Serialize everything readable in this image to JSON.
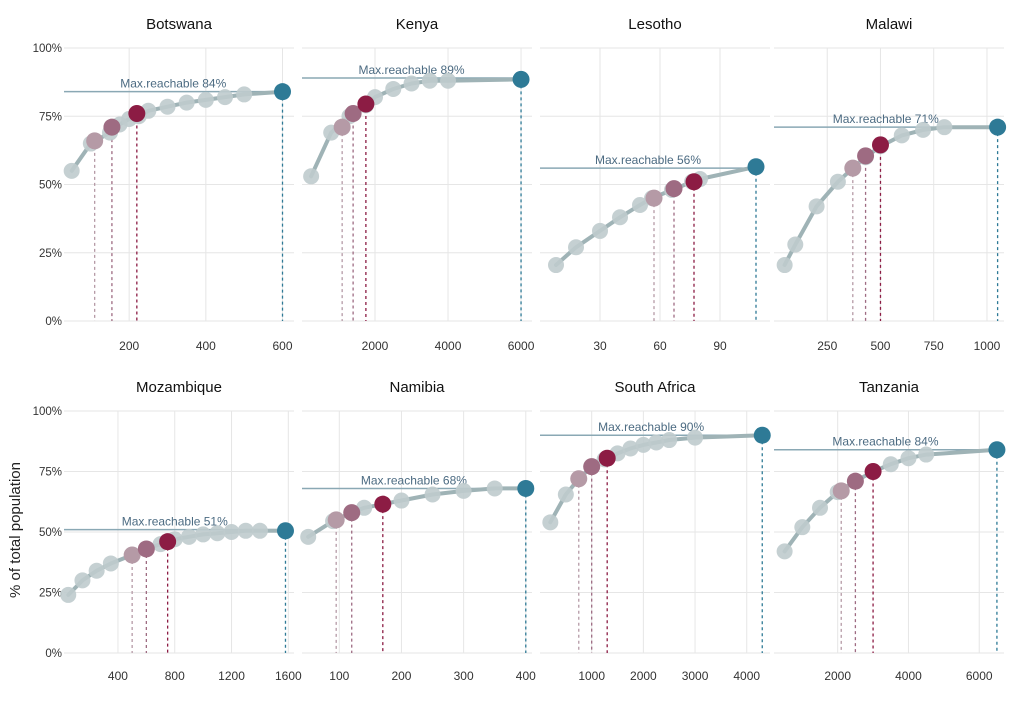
{
  "figure": {
    "ylabel": "% of total population",
    "yticks": [
      "0%",
      "25%",
      "50%",
      "75%",
      "100%"
    ]
  },
  "colors": {
    "gray_point": "#bfcbcd",
    "gray_line": "#9fb3b6",
    "highlight_1": "#b59aa6",
    "highlight_2": "#9e6b82",
    "highlight_3": "#8c1c44",
    "max_point": "#2e7a96",
    "max_line": "#8aa8b4",
    "max_label": "#4c6b82",
    "grid": "#e6e6e6",
    "text": "#333333"
  },
  "chart_data": [
    {
      "type": "line",
      "title": "Botswana",
      "xlim": [
        30,
        630
      ],
      "ylim": [
        0,
        100
      ],
      "xticks": [
        200,
        400,
        600
      ],
      "annotation": "Max.reachable 84%",
      "max_reachable": 84,
      "series": [
        {
          "x": [
            50,
            100,
            150,
            175,
            200,
            225,
            250,
            300,
            350,
            400,
            450,
            500,
            600
          ],
          "y": [
            55,
            65,
            69,
            72,
            74,
            75,
            77,
            78.5,
            80,
            81,
            82,
            83,
            84
          ]
        }
      ],
      "highlights": [
        {
          "x": 110,
          "y": 66
        },
        {
          "x": 155,
          "y": 71
        },
        {
          "x": 220,
          "y": 76
        }
      ],
      "max_point": {
        "x": 600,
        "y": 84
      }
    },
    {
      "type": "line",
      "title": "Kenya",
      "xlim": [
        0,
        6300
      ],
      "ylim": [
        0,
        100
      ],
      "xticks": [
        2000,
        4000,
        6000
      ],
      "annotation": "Max.reachable 89%",
      "max_reachable": 89,
      "series": [
        {
          "x": [
            250,
            800,
            1300,
            1750,
            2000,
            2500,
            3000,
            3500,
            4000,
            6000
          ],
          "y": [
            53,
            69,
            75,
            79,
            82,
            85,
            87,
            88,
            88,
            88.5
          ]
        }
      ],
      "highlights": [
        {
          "x": 1100,
          "y": 71
        },
        {
          "x": 1400,
          "y": 76
        },
        {
          "x": 1750,
          "y": 79.5
        }
      ],
      "max_point": {
        "x": 6000,
        "y": 88.5
      }
    },
    {
      "type": "line",
      "title": "Lesotho",
      "xlim": [
        0,
        115
      ],
      "ylim": [
        0,
        100
      ],
      "xticks": [
        30,
        60,
        90
      ],
      "annotation": "Max.reachable 56%",
      "max_reachable": 56,
      "series": [
        {
          "x": [
            8,
            18,
            30,
            40,
            50,
            56,
            66,
            76,
            80,
            108
          ],
          "y": [
            20.5,
            27,
            33,
            38,
            42.5,
            45,
            48,
            51,
            52,
            56.5
          ]
        }
      ],
      "highlights": [
        {
          "x": 57,
          "y": 45
        },
        {
          "x": 67,
          "y": 48.5
        },
        {
          "x": 77,
          "y": 51
        }
      ],
      "max_point": {
        "x": 108,
        "y": 56.5
      }
    },
    {
      "type": "line",
      "title": "Malawi",
      "xlim": [
        0,
        1080
      ],
      "ylim": [
        0,
        100
      ],
      "xticks": [
        250,
        500,
        750,
        1000
      ],
      "annotation": "Max.reachable 71%",
      "max_reachable": 71,
      "series": [
        {
          "x": [
            50,
            100,
            200,
            300,
            370,
            430,
            500,
            600,
            700,
            800,
            1050
          ],
          "y": [
            20.5,
            28,
            42,
            51,
            56,
            60,
            64,
            68,
            70,
            71,
            71
          ]
        }
      ],
      "highlights": [
        {
          "x": 370,
          "y": 56
        },
        {
          "x": 430,
          "y": 60.5
        },
        {
          "x": 500,
          "y": 64.5
        }
      ],
      "max_point": {
        "x": 1050,
        "y": 71
      }
    },
    {
      "type": "line",
      "title": "Mozambique",
      "xlim": [
        20,
        1640
      ],
      "ylim": [
        0,
        100
      ],
      "xticks": [
        400,
        800,
        1200,
        1600
      ],
      "annotation": "Max.reachable 51%",
      "max_reachable": 51,
      "series": [
        {
          "x": [
            50,
            150,
            250,
            350,
            500,
            600,
            700,
            800,
            900,
            1000,
            1100,
            1200,
            1300,
            1400,
            1580
          ],
          "y": [
            24,
            30,
            34,
            37,
            40.5,
            43,
            45,
            47,
            48,
            49,
            49.5,
            50,
            50.5,
            50.5,
            50.5
          ]
        }
      ],
      "highlights": [
        {
          "x": 500,
          "y": 40.5
        },
        {
          "x": 600,
          "y": 43
        },
        {
          "x": 750,
          "y": 46
        }
      ],
      "max_point": {
        "x": 1580,
        "y": 50.5
      }
    },
    {
      "type": "line",
      "title": "Namibia",
      "xlim": [
        40,
        410
      ],
      "ylim": [
        0,
        100
      ],
      "xticks": [
        100,
        200,
        300,
        400
      ],
      "annotation": "Max.reachable 68%",
      "max_reachable": 68,
      "series": [
        {
          "x": [
            50,
            90,
            120,
            140,
            170,
            200,
            250,
            300,
            350,
            400
          ],
          "y": [
            48,
            54.5,
            58,
            60,
            61.5,
            63,
            65.5,
            67,
            68,
            68
          ]
        }
      ],
      "highlights": [
        {
          "x": 95,
          "y": 55
        },
        {
          "x": 120,
          "y": 58
        },
        {
          "x": 170,
          "y": 61.5
        }
      ],
      "max_point": {
        "x": 400,
        "y": 68
      }
    },
    {
      "type": "line",
      "title": "South Africa",
      "xlim": [
        0,
        4450
      ],
      "ylim": [
        0,
        100
      ],
      "xticks": [
        1000,
        2000,
        3000,
        4000
      ],
      "annotation": "Max.reachable 90%",
      "max_reachable": 90,
      "series": [
        {
          "x": [
            200,
            500,
            750,
            1000,
            1250,
            1500,
            1750,
            2000,
            2250,
            2500,
            3000,
            4300
          ],
          "y": [
            54,
            65.5,
            72,
            77,
            80,
            82.5,
            84.5,
            86,
            87,
            88,
            89,
            90
          ]
        }
      ],
      "highlights": [
        {
          "x": 750,
          "y": 72
        },
        {
          "x": 1000,
          "y": 77
        },
        {
          "x": 1300,
          "y": 80.5
        }
      ],
      "max_point": {
        "x": 4300,
        "y": 90
      }
    },
    {
      "type": "line",
      "title": "Tanzania",
      "xlim": [
        200,
        6700
      ],
      "ylim": [
        0,
        100
      ],
      "xticks": [
        2000,
        4000,
        6000
      ],
      "annotation": "Max.reachable 84%",
      "max_reachable": 84,
      "series": [
        {
          "x": [
            500,
            1000,
            1500,
            2000,
            2500,
            3000,
            3500,
            4000,
            4500,
            6500
          ],
          "y": [
            42,
            52,
            60,
            66.5,
            71,
            75,
            78,
            80.5,
            82,
            84
          ]
        }
      ],
      "highlights": [
        {
          "x": 2100,
          "y": 67
        },
        {
          "x": 2500,
          "y": 71
        },
        {
          "x": 3000,
          "y": 75
        }
      ],
      "max_point": {
        "x": 6500,
        "y": 84
      }
    }
  ]
}
